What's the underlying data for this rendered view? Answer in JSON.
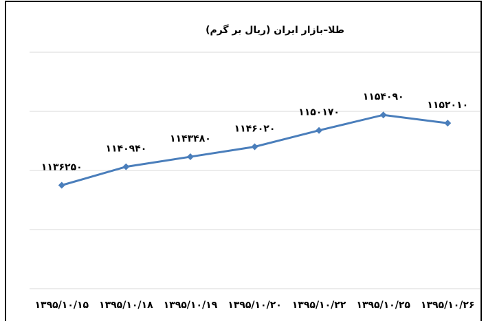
{
  "chart_data": {
    "type": "line",
    "title": "طلا–بازار ایران (ریال بر گرم)",
    "categories": [
      "۱۳۹۵/۱۰/۱۵",
      "۱۳۹۵/۱۰/۱۸",
      "۱۳۹۵/۱۰/۱۹",
      "۱۳۹۵/۱۰/۲۰",
      "۱۳۹۵/۱۰/۲۲",
      "۱۳۹۵/۱۰/۲۵",
      "۱۳۹۵/۱۰/۲۶"
    ],
    "series": [
      {
        "name": "طلا",
        "color": "#4a7ebb",
        "values": [
          1136250,
          1140940,
          1143480,
          1146020,
          1150170,
          1154090,
          1152010
        ],
        "value_labels": [
          "۱۱۳۶۲۵۰",
          "۱۱۴۰۹۴۰",
          "۱۱۴۳۴۸۰",
          "۱۱۴۶۰۲۰",
          "۱۱۵۰۱۷۰",
          "۱۱۵۴۰۹۰",
          "۱۱۵۲۰۱۰"
        ]
      }
    ],
    "ylim": [
      1110000,
      1170000
    ],
    "yticks": [
      1110000,
      1125000,
      1140000,
      1155000,
      1170000
    ],
    "grid": true
  }
}
